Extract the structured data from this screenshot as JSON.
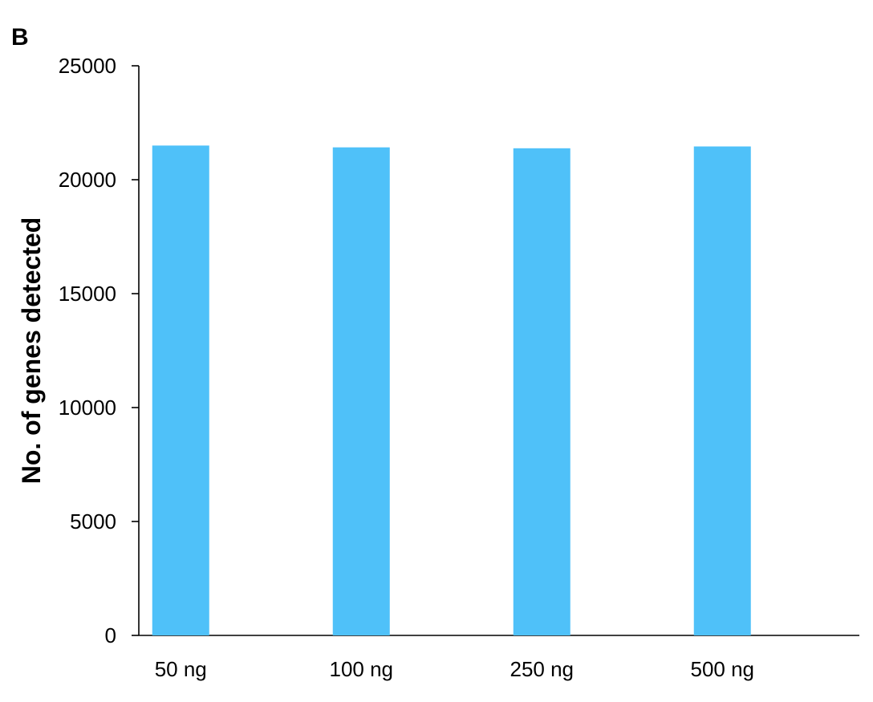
{
  "figure": {
    "panel_label": "B"
  },
  "chart_data": {
    "type": "bar",
    "categories": [
      "50 ng",
      "100 ng",
      "250 ng",
      "500 ng"
    ],
    "values": [
      21500,
      21420,
      21380,
      21460
    ],
    "title": "",
    "xlabel": "",
    "ylabel": "No. of genes detected",
    "ylim": [
      0,
      25000
    ],
    "yticks": [
      "0",
      "5000",
      "10000",
      "15000",
      "20000",
      "25000"
    ],
    "grid": false,
    "bar_color": "#4FC1F9"
  }
}
